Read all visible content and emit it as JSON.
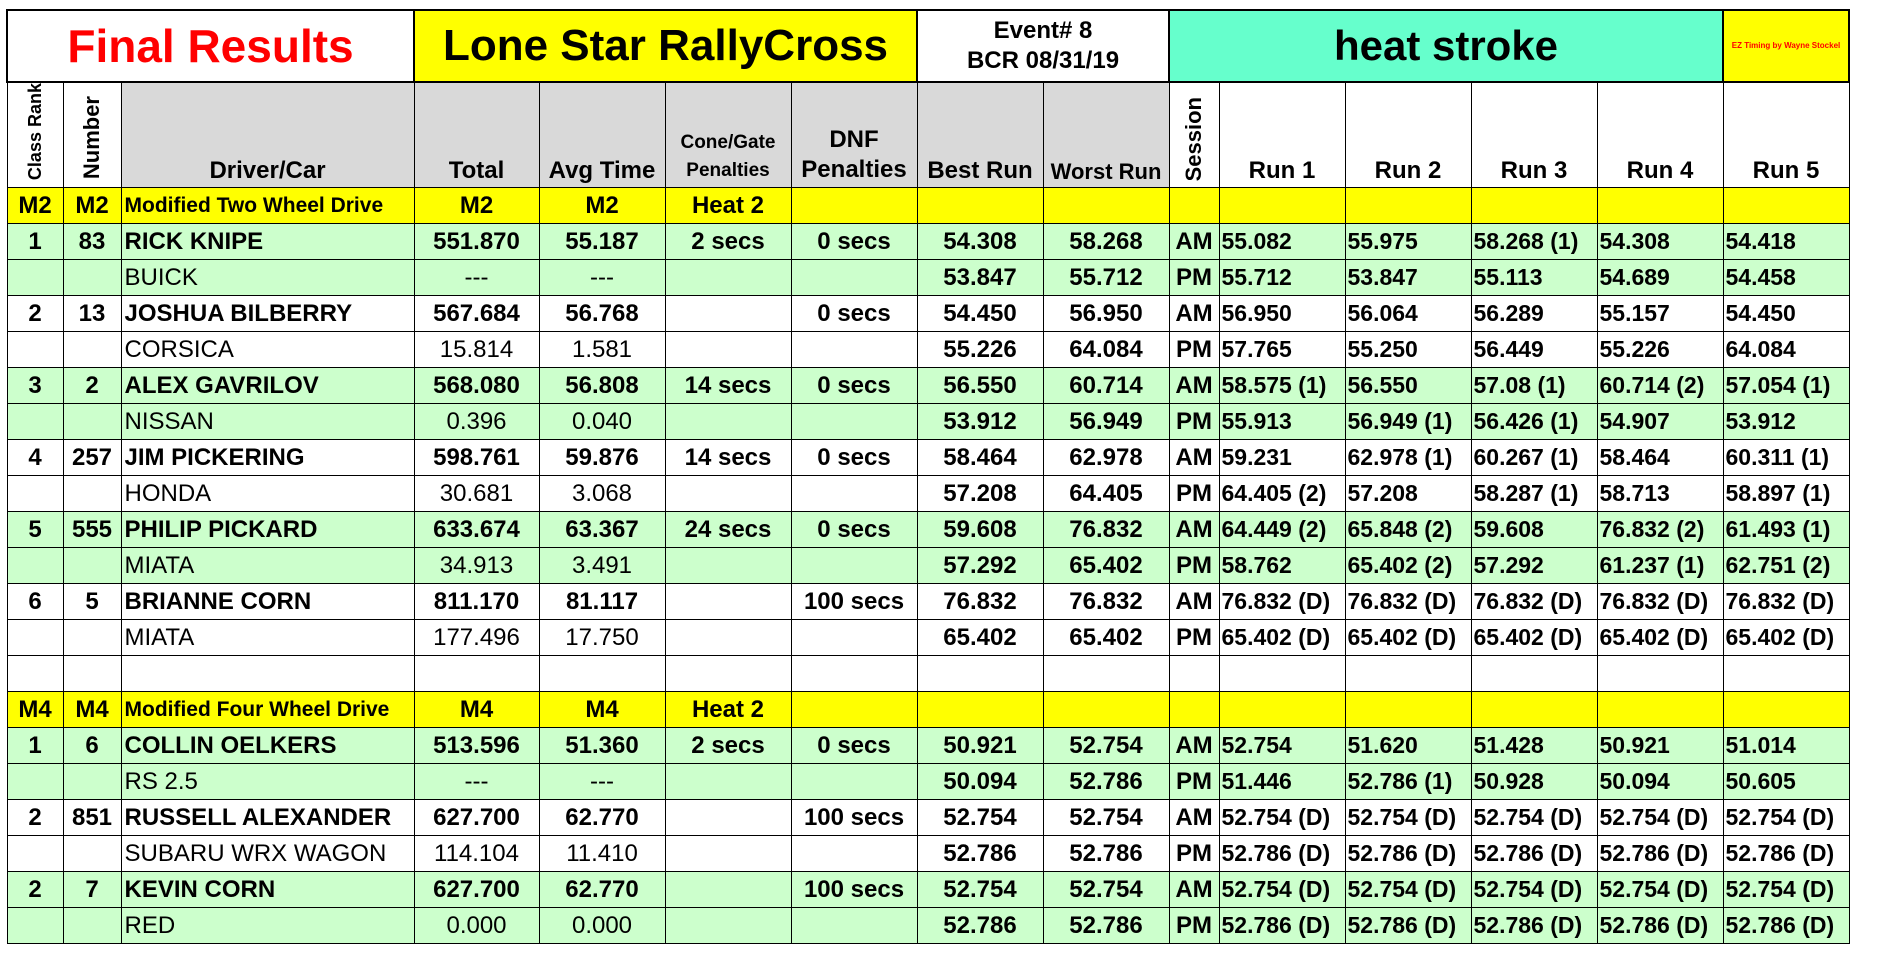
{
  "title": {
    "final_results": "Final Results",
    "event_name": "Lone Star RallyCross",
    "event_number": "Event# 8",
    "event_date": "BCR 08/31/19",
    "heat_name": "heat stroke",
    "credit": "EZ Timing by Wayne Stockel"
  },
  "headers": {
    "class_rank": "Class Rank",
    "number": "Number",
    "driver_car": "Driver/Car",
    "total": "Total",
    "avg_time": "Avg Time",
    "cone_gate_1": "Cone/Gate",
    "cone_gate_2": "Penalties",
    "dnf_1": "DNF",
    "dnf_2": "Penalties",
    "best_run": "Best Run",
    "worst_run": "Worst Run",
    "session": "Session",
    "runs": [
      "Run 1",
      "Run 2",
      "Run 3",
      "Run 4",
      "Run 5"
    ]
  },
  "classes": [
    {
      "code_rank": "M2",
      "code_number": "M2",
      "name": "Modified Two Wheel Drive",
      "code_total": "M2",
      "code_avg": "M2",
      "heat": "Heat 2",
      "entries": [
        {
          "rank": "1",
          "number": "83",
          "driver": "RICK KNIPE",
          "car": "BUICK",
          "total": "551.870",
          "avg": "55.187",
          "total2": "---",
          "avg2": "---",
          "cone": "2 secs",
          "dnf": "0 secs",
          "am": {
            "best": "54.308",
            "worst": "58.268",
            "session": "AM",
            "runs": [
              "55.082",
              "55.975",
              "58.268 (1)",
              "54.308",
              "54.418"
            ]
          },
          "pm": {
            "best": "53.847",
            "worst": "55.712",
            "session": "PM",
            "runs": [
              "55.712",
              "53.847",
              "55.113",
              "54.689",
              "54.458"
            ]
          }
        },
        {
          "rank": "2",
          "number": "13",
          "driver": "JOSHUA BILBERRY",
          "car": "CORSICA",
          "total": "567.684",
          "avg": "56.768",
          "total2": "15.814",
          "avg2": "1.581",
          "cone": "",
          "dnf": "0 secs",
          "am": {
            "best": "54.450",
            "worst": "56.950",
            "session": "AM",
            "runs": [
              "56.950",
              "56.064",
              "56.289",
              "55.157",
              "54.450"
            ]
          },
          "pm": {
            "best": "55.226",
            "worst": "64.084",
            "session": "PM",
            "runs": [
              "57.765",
              "55.250",
              "56.449",
              "55.226",
              "64.084"
            ]
          }
        },
        {
          "rank": "3",
          "number": "2",
          "driver": "ALEX GAVRILOV",
          "car": "NISSAN",
          "total": "568.080",
          "avg": "56.808",
          "total2": "0.396",
          "avg2": "0.040",
          "cone": "14 secs",
          "dnf": "0 secs",
          "am": {
            "best": "56.550",
            "worst": "60.714",
            "session": "AM",
            "runs": [
              "58.575 (1)",
              "56.550",
              "57.08 (1)",
              "60.714 (2)",
              "57.054 (1)"
            ]
          },
          "pm": {
            "best": "53.912",
            "worst": "56.949",
            "session": "PM",
            "runs": [
              "55.913",
              "56.949 (1)",
              "56.426 (1)",
              "54.907",
              "53.912"
            ]
          }
        },
        {
          "rank": "4",
          "number": "257",
          "driver": "JIM PICKERING",
          "car": "HONDA",
          "total": "598.761",
          "avg": "59.876",
          "total2": "30.681",
          "avg2": "3.068",
          "cone": "14 secs",
          "dnf": "0 secs",
          "am": {
            "best": "58.464",
            "worst": "62.978",
            "session": "AM",
            "runs": [
              "59.231",
              "62.978 (1)",
              "60.267 (1)",
              "58.464",
              "60.311 (1)"
            ]
          },
          "pm": {
            "best": "57.208",
            "worst": "64.405",
            "session": "PM",
            "runs": [
              "64.405 (2)",
              "57.208",
              "58.287 (1)",
              "58.713",
              "58.897 (1)"
            ]
          }
        },
        {
          "rank": "5",
          "number": "555",
          "driver": "PHILIP PICKARD",
          "car": "MIATA",
          "total": "633.674",
          "avg": "63.367",
          "total2": "34.913",
          "avg2": "3.491",
          "cone": "24 secs",
          "dnf": "0 secs",
          "am": {
            "best": "59.608",
            "worst": "76.832",
            "session": "AM",
            "runs": [
              "64.449 (2)",
              "65.848 (2)",
              "59.608",
              "76.832 (2)",
              "61.493 (1)"
            ]
          },
          "pm": {
            "best": "57.292",
            "worst": "65.402",
            "session": "PM",
            "runs": [
              "58.762",
              "65.402 (2)",
              "57.292",
              "61.237 (1)",
              "62.751 (2)"
            ]
          }
        },
        {
          "rank": "6",
          "number": "5",
          "driver": "BRIANNE CORN",
          "car": "MIATA",
          "total": "811.170",
          "avg": "81.117",
          "total2": "177.496",
          "avg2": "17.750",
          "cone": "",
          "dnf": "100 secs",
          "am": {
            "best": "76.832",
            "worst": "76.832",
            "session": "AM",
            "runs": [
              "76.832 (D)",
              "76.832 (D)",
              "76.832 (D)",
              "76.832 (D)",
              "76.832 (D)"
            ]
          },
          "pm": {
            "best": "65.402",
            "worst": "65.402",
            "session": "PM",
            "runs": [
              "65.402 (D)",
              "65.402 (D)",
              "65.402 (D)",
              "65.402 (D)",
              "65.402 (D)"
            ]
          }
        }
      ]
    },
    {
      "code_rank": "M4",
      "code_number": "M4",
      "name": "Modified Four Wheel Drive",
      "code_total": "M4",
      "code_avg": "M4",
      "heat": "Heat 2",
      "entries": [
        {
          "rank": "1",
          "number": "6",
          "driver": "COLLIN OELKERS",
          "car": "RS 2.5",
          "total": "513.596",
          "avg": "51.360",
          "total2": "---",
          "avg2": "---",
          "cone": "2 secs",
          "dnf": "0 secs",
          "am": {
            "best": "50.921",
            "worst": "52.754",
            "session": "AM",
            "runs": [
              "52.754",
              "51.620",
              "51.428",
              "50.921",
              "51.014"
            ]
          },
          "pm": {
            "best": "50.094",
            "worst": "52.786",
            "session": "PM",
            "runs": [
              "51.446",
              "52.786 (1)",
              "50.928",
              "50.094",
              "50.605"
            ]
          }
        },
        {
          "rank": "2",
          "number": "851",
          "driver": "RUSSELL ALEXANDER",
          "car": "SUBARU WRX WAGON",
          "total": "627.700",
          "avg": "62.770",
          "total2": "114.104",
          "avg2": "11.410",
          "cone": "",
          "dnf": "100 secs",
          "am": {
            "best": "52.754",
            "worst": "52.754",
            "session": "AM",
            "runs": [
              "52.754 (D)",
              "52.754 (D)",
              "52.754 (D)",
              "52.754 (D)",
              "52.754 (D)"
            ]
          },
          "pm": {
            "best": "52.786",
            "worst": "52.786",
            "session": "PM",
            "runs": [
              "52.786 (D)",
              "52.786 (D)",
              "52.786 (D)",
              "52.786 (D)",
              "52.786 (D)"
            ]
          }
        },
        {
          "rank": "2",
          "number": "7",
          "driver": "KEVIN CORN",
          "car": "RED",
          "total": "627.700",
          "avg": "62.770",
          "total2": "0.000",
          "avg2": "0.000",
          "cone": "",
          "dnf": "100 secs",
          "am": {
            "best": "52.754",
            "worst": "52.754",
            "session": "AM",
            "runs": [
              "52.754 (D)",
              "52.754 (D)",
              "52.754 (D)",
              "52.754 (D)",
              "52.754 (D)"
            ]
          },
          "pm": {
            "best": "52.786",
            "worst": "52.786",
            "session": "PM",
            "runs": [
              "52.786 (D)",
              "52.786 (D)",
              "52.786 (D)",
              "52.786 (D)",
              "52.786 (D)"
            ]
          }
        }
      ]
    }
  ],
  "colors": {
    "title_red": "#ff0000",
    "class_yellow": "#ffff00",
    "row_green": "#ccffcc",
    "heat_teal": "#66ffcc",
    "header_gray": "#d9d9d9"
  }
}
